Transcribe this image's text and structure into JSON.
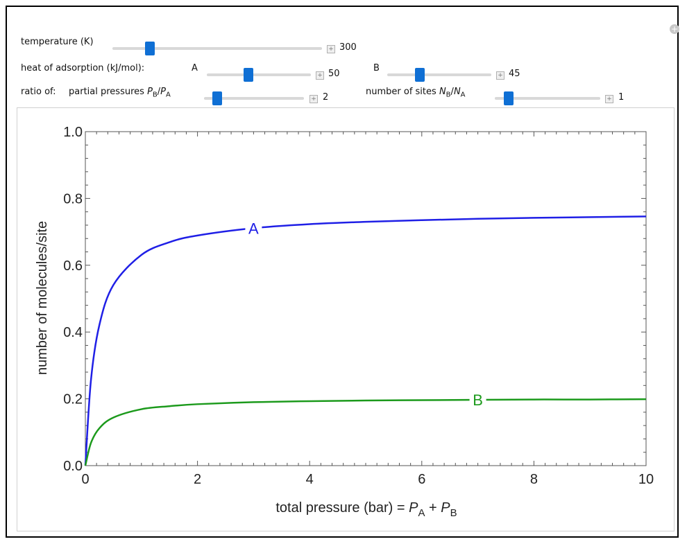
{
  "controls": {
    "temperature": {
      "label": "temperature (K)",
      "value": "300",
      "fraction": 0.18
    },
    "heat": {
      "label": "heat of adsorption (kJ/mol):",
      "a_label": "A",
      "a_value": "50",
      "a_fraction": 0.4,
      "b_label": "B",
      "b_value": "45",
      "b_fraction": 0.31
    },
    "ratio": {
      "label_prefix": "ratio of:",
      "partial_label": "partial pressures",
      "partial_sym_num": "P",
      "partial_sub_num": "B",
      "partial_sep": "/",
      "partial_sym_den": "P",
      "partial_sub_den": "A",
      "partial_value": "2",
      "partial_fraction": 0.13,
      "sites_label": "number of sites",
      "sites_sym_num": "N",
      "sites_sub_num": "B",
      "sites_sep": "/",
      "sites_sym_den": "N",
      "sites_sub_den": "A",
      "sites_value": "1",
      "sites_fraction": 0.13
    }
  },
  "colors": {
    "series_a": "#1f1fe6",
    "series_b": "#1c9a1c",
    "slider_thumb": "#0f6fd4"
  },
  "chart_data": {
    "type": "line",
    "xlabel_prefix": "total pressure (bar) = ",
    "xlabel_p1": "P",
    "xlabel_s1": "A",
    "xlabel_plus": " + ",
    "xlabel_p2": "P",
    "xlabel_s2": "B",
    "ylabel": "number of molecules/site",
    "xlim": [
      0,
      10
    ],
    "ylim": [
      0,
      1.0
    ],
    "xticks": [
      "0",
      "2",
      "4",
      "6",
      "8",
      "10"
    ],
    "yticks": [
      "0.0",
      "0.2",
      "0.4",
      "0.6",
      "0.8",
      "1.0"
    ],
    "series": [
      {
        "name": "A",
        "x": [
          0,
          0.1,
          0.25,
          0.5,
          1,
          1.5,
          2,
          3,
          4,
          5,
          6,
          7,
          8,
          9,
          10
        ],
        "y": [
          0,
          0.256,
          0.421,
          0.541,
          0.631,
          0.669,
          0.689,
          0.711,
          0.723,
          0.73,
          0.735,
          0.739,
          0.742,
          0.744,
          0.746
        ],
        "label": "A",
        "label_x": 3
      },
      {
        "name": "B",
        "x": [
          0,
          0.1,
          0.25,
          0.5,
          1,
          1.5,
          2,
          3,
          4,
          5,
          6,
          7,
          8,
          9,
          10
        ],
        "y": [
          0,
          0.068,
          0.112,
          0.144,
          0.169,
          0.178,
          0.184,
          0.19,
          0.193,
          0.195,
          0.196,
          0.197,
          0.198,
          0.198,
          0.199
        ],
        "label": "B",
        "label_x": 7
      }
    ]
  }
}
